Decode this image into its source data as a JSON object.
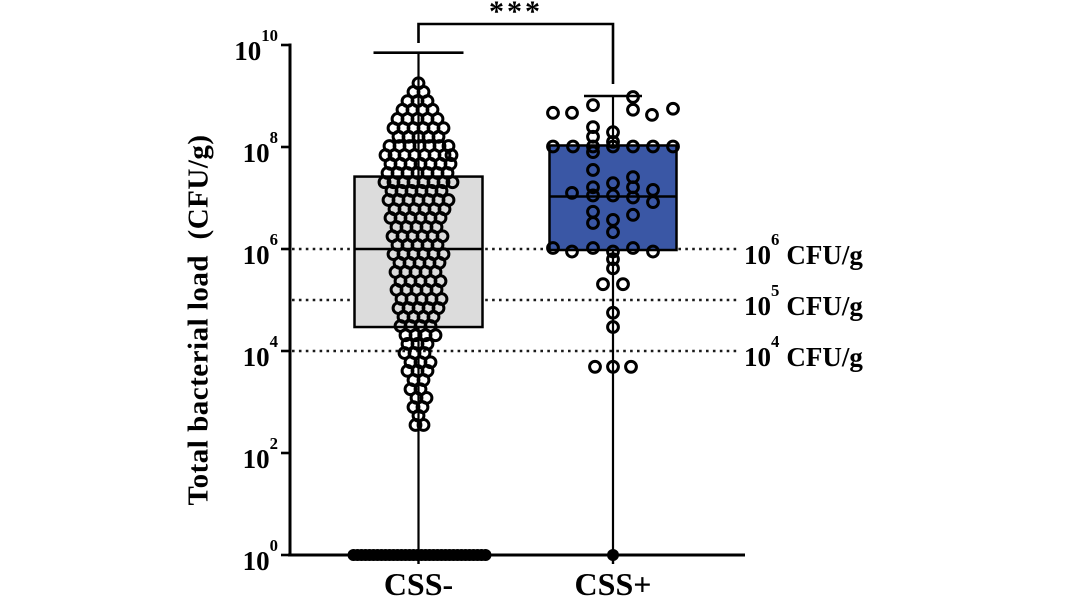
{
  "figure": {
    "background": "#ffffff",
    "axis_color": "#000000"
  },
  "chart_data": {
    "type": "box-scatter",
    "title": "",
    "ylabel": "Total bacterial load  (CFU/g)",
    "xlabel": "",
    "y_scale": "log10",
    "ylim_log": [
      0,
      10
    ],
    "y_tick_exponents": [
      10,
      8,
      6,
      4,
      2,
      0
    ],
    "y_tick_base": "10",
    "grid": "off",
    "reference_lines": [
      {
        "exponent": 6,
        "suffix": "CFU/g"
      },
      {
        "exponent": 5,
        "suffix": "CFU/g"
      },
      {
        "exponent": 4,
        "suffix": "CFU/g"
      }
    ],
    "significance": {
      "label": "***",
      "between": [
        "CSS-",
        "CSS+"
      ]
    },
    "groups": [
      {
        "name": "CSS-",
        "box_fill": "#dcdcdc",
        "box": {
          "q1_log": 4.47,
          "median_log": 6.0,
          "q3_log": 7.42,
          "whisker_high_log": 9.85,
          "whisker_low_log": 0
        },
        "scatter_rows": [
          [
            9.25,
            [
              0
            ]
          ],
          [
            9.08,
            [
              -5,
              5
            ]
          ],
          [
            8.9,
            [
              -11,
              -1,
              9
            ]
          ],
          [
            8.73,
            [
              -16,
              -6,
              4,
              14
            ]
          ],
          [
            8.55,
            [
              -21,
              -11,
              -1,
              9,
              19
            ]
          ],
          [
            8.37,
            [
              -25,
              -15,
              -5,
              5,
              15,
              25
            ]
          ],
          [
            8.2,
            [
              -20,
              -10,
              0,
              10,
              20
            ]
          ],
          [
            8.02,
            [
              -29,
              -19,
              -9,
              1,
              11,
              21,
              30
            ]
          ],
          [
            7.84,
            [
              -33,
              -24,
              -14,
              -4,
              6,
              16,
              26,
              33
            ]
          ],
          [
            7.67,
            [
              -28,
              -18,
              -8,
              2,
              12,
              22,
              32
            ]
          ],
          [
            7.49,
            [
              -31,
              -21,
              -11,
              -1,
              9,
              19,
              29
            ]
          ],
          [
            7.31,
            [
              -34,
              -25,
              -15,
              -5,
              5,
              15,
              25,
              34
            ]
          ],
          [
            7.14,
            [
              -27,
              -17,
              -7,
              3,
              13,
              23
            ]
          ],
          [
            6.96,
            [
              -30,
              -20,
              -10,
              0,
              10,
              20,
              30
            ]
          ],
          [
            6.78,
            [
              -24,
              -14,
              -4,
              6,
              16,
              26
            ]
          ],
          [
            6.61,
            [
              -28,
              -18,
              -8,
              2,
              12,
              22
            ]
          ],
          [
            6.43,
            [
              -22,
              -12,
              -2,
              8,
              18
            ]
          ],
          [
            6.25,
            [
              -26,
              -16,
              -6,
              4,
              14,
              24
            ]
          ],
          [
            6.08,
            [
              -21,
              -11,
              -1,
              9,
              19
            ]
          ],
          [
            5.9,
            [
              -25,
              -15,
              -5,
              5,
              15,
              25
            ]
          ],
          [
            5.73,
            [
              -19,
              -9,
              1,
              11,
              21
            ]
          ],
          [
            5.55,
            [
              -23,
              -13,
              -3,
              7,
              17
            ]
          ],
          [
            5.37,
            [
              -18,
              -8,
              2,
              12,
              22
            ]
          ],
          [
            5.2,
            [
              -22,
              -12,
              -2,
              8,
              18
            ]
          ],
          [
            5.02,
            [
              -17,
              -7,
              3,
              13,
              23
            ]
          ],
          [
            4.84,
            [
              -20,
              -10,
              0,
              10,
              20
            ]
          ],
          [
            4.67,
            [
              -15,
              -5,
              5,
              15
            ]
          ],
          [
            4.49,
            [
              -18,
              -8,
              2,
              12
            ]
          ],
          [
            4.31,
            [
              -13,
              -3,
              7,
              17
            ]
          ],
          [
            4.14,
            [
              -11,
              -1,
              9
            ]
          ],
          [
            3.96,
            [
              -14,
              -4,
              6
            ]
          ],
          [
            3.78,
            [
              -8,
              2,
              12
            ]
          ],
          [
            3.61,
            [
              -11,
              -1,
              9
            ]
          ],
          [
            3.43,
            [
              -5,
              5
            ]
          ],
          [
            3.25,
            [
              -8,
              2
            ]
          ],
          [
            3.08,
            [
              -2,
              8
            ]
          ],
          [
            2.9,
            [
              -5,
              4
            ]
          ],
          [
            2.73,
            [
              0
            ]
          ],
          [
            2.55,
            [
              -3,
              5
            ]
          ]
        ],
        "baseline_log": 0,
        "baseline_dx": [
          -65,
          -61,
          -57,
          -53,
          -49,
          -45,
          -41,
          -37,
          -33,
          -29,
          -25,
          -21,
          -17,
          -13,
          -9,
          -5,
          -1,
          3,
          7,
          11,
          15,
          19,
          23,
          27,
          31,
          35,
          39,
          43,
          47,
          51,
          55,
          59,
          63,
          67
        ]
      },
      {
        "name": "CSS+",
        "box_fill": "#3a57a5",
        "box": {
          "q1_log": 5.98,
          "median_log": 7.03,
          "q3_log": 8.03,
          "whisker_high_log": 9.0,
          "whisker_low_log": 0
        },
        "scatter_rows": [
          [
            8.98,
            [
              20
            ]
          ],
          [
            8.82,
            [
              -20
            ]
          ],
          [
            8.75,
            [
              60
            ]
          ],
          [
            8.73,
            [
              20
            ]
          ],
          [
            8.67,
            [
              -60,
              -41
            ]
          ],
          [
            8.63,
            [
              39
            ]
          ],
          [
            8.39,
            [
              -20
            ]
          ],
          [
            8.29,
            [
              0
            ]
          ],
          [
            8.2,
            [
              -20
            ]
          ],
          [
            8.1,
            [
              0
            ]
          ],
          [
            8.01,
            [
              -60,
              -40,
              -20,
              0,
              20,
              40,
              60
            ]
          ],
          [
            7.9,
            [
              -20
            ]
          ],
          [
            7.55,
            [
              -20
            ]
          ],
          [
            7.41,
            [
              20
            ]
          ],
          [
            7.29,
            [
              0
            ]
          ],
          [
            7.21,
            [
              -20,
              20
            ]
          ],
          [
            7.16,
            [
              40
            ]
          ],
          [
            7.1,
            [
              -41
            ]
          ],
          [
            7.05,
            [
              -20,
              0
            ]
          ],
          [
            7.01,
            [
              20
            ]
          ],
          [
            6.92,
            [
              40
            ]
          ],
          [
            6.73,
            [
              -20
            ]
          ],
          [
            6.67,
            [
              20
            ]
          ],
          [
            6.57,
            [
              0
            ]
          ],
          [
            6.51,
            [
              -20
            ]
          ],
          [
            6.33,
            [
              0
            ]
          ],
          [
            6.02,
            [
              -60,
              -20,
              20
            ]
          ],
          [
            5.95,
            [
              -41,
              0,
              40
            ]
          ],
          [
            5.8,
            [
              0
            ]
          ],
          [
            5.62,
            [
              0
            ]
          ],
          [
            5.31,
            [
              -10,
              10
            ]
          ],
          [
            4.75,
            [
              0
            ]
          ],
          [
            4.47,
            [
              0
            ]
          ],
          [
            3.69,
            [
              -18,
              0,
              18
            ]
          ]
        ],
        "baseline_log": 0,
        "baseline_dx": [
          0
        ]
      }
    ]
  }
}
